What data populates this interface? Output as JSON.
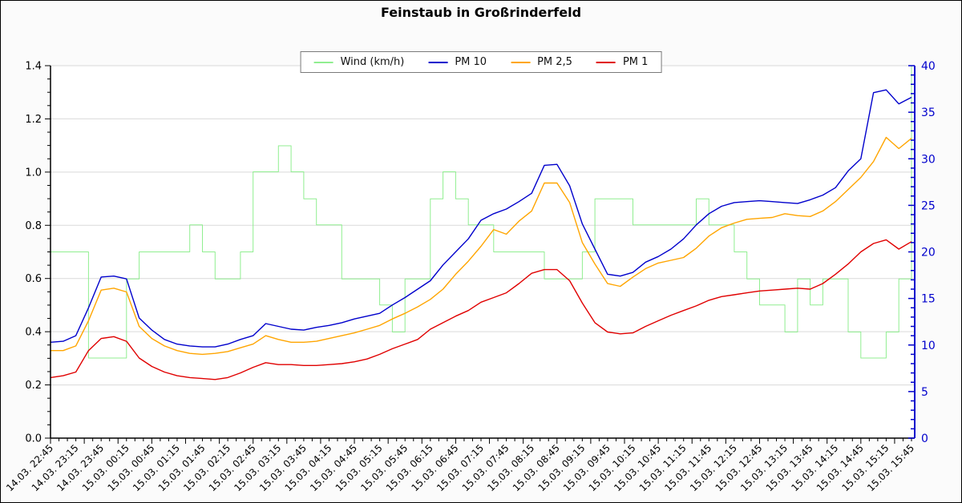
{
  "window": {
    "title": "Feinstaub in Großrinderfeld"
  },
  "chart_data": {
    "type": "line",
    "title": "Feinstaub in Großrinderfeld",
    "x_start_label": "14.03. 22:45",
    "x_end_label": "15.03. 15:45",
    "sample_interval_minutes": 15,
    "x_tick_labels": [
      "14.03. 22:45",
      "14.03. 23:15",
      "14.03. 23:45",
      "15.03. 00:15",
      "15.03. 00:45",
      "15.03. 01:15",
      "15.03. 01:45",
      "15.03. 02:15",
      "15.03. 02:45",
      "15.03. 03:15",
      "15.03. 03:45",
      "15.03. 04:15",
      "15.03. 04:45",
      "15.03. 05:15",
      "15.03. 05:45",
      "15.03. 06:15",
      "15.03. 06:45",
      "15.03. 07:15",
      "15.03. 07:45",
      "15.03. 08:15",
      "15.03. 08:45",
      "15.03. 09:15",
      "15.03. 09:45",
      "15.03. 10:15",
      "15.03. 10:45",
      "15.03. 11:15",
      "15.03. 11:45",
      "15.03. 12:15",
      "15.03. 12:45",
      "15.03. 13:15",
      "15.03. 13:45",
      "15.03. 14:15",
      "15.03. 14:45",
      "15.03. 15:15",
      "15.03. 15:45"
    ],
    "left_axis": {
      "min": 0.0,
      "max": 1.4,
      "tick_step": 0.2,
      "minor_step": 0.05,
      "labels": [
        "0.0",
        "0.2",
        "0.4",
        "0.6",
        "0.8",
        "1.0",
        "1.2",
        "1.4"
      ],
      "color": "#000000"
    },
    "right_axis": {
      "min": 0,
      "max": 40,
      "tick_step": 5,
      "minor_step": 1,
      "labels": [
        "0",
        "5",
        "10",
        "15",
        "20",
        "25",
        "30",
        "35",
        "40"
      ],
      "color": "#0000cc"
    },
    "grid": "horizontal-only",
    "legend_position": "top-center",
    "layout": {
      "background": "#fbfbfb",
      "plot_background": "#ffffff",
      "grid_color": "#d9d9d9",
      "axis_color": "#000000"
    },
    "series": [
      {
        "name": "Wind (km/h)",
        "color": "#90ee90",
        "style": "step",
        "axis": "right",
        "width": 1,
        "values": [
          20,
          20,
          20,
          8.6,
          8.6,
          8.6,
          17.1,
          20,
          20,
          20,
          20,
          22.9,
          20,
          17.1,
          17.1,
          20,
          28.6,
          28.6,
          31.4,
          28.6,
          25.7,
          22.9,
          22.9,
          17.1,
          17.1,
          17.1,
          14.3,
          11.4,
          17.1,
          17.1,
          25.7,
          28.6,
          25.7,
          22.9,
          22.9,
          20,
          20,
          20,
          20,
          17.1,
          17.1,
          17.1,
          20,
          25.7,
          25.7,
          25.7,
          22.9,
          22.9,
          22.9,
          22.9,
          22.9,
          25.7,
          22.9,
          22.9,
          20,
          17.1,
          14.3,
          14.3,
          11.4,
          17.1,
          14.3,
          17.1,
          17.1,
          11.4,
          8.6,
          8.6,
          11.4,
          17.1,
          40
        ]
      },
      {
        "name": "PM 10",
        "color": "#0000cc",
        "style": "line",
        "axis": "right",
        "width": 1.4,
        "values": [
          10.3,
          10.4,
          11.0,
          14.0,
          17.3,
          17.4,
          17.1,
          12.9,
          11.6,
          10.6,
          10.1,
          9.9,
          9.8,
          9.8,
          10.1,
          10.6,
          11.0,
          12.3,
          12.0,
          11.7,
          11.6,
          11.9,
          12.1,
          12.4,
          12.8,
          13.1,
          13.4,
          14.3,
          15.1,
          16.0,
          16.9,
          18.6,
          20.0,
          21.4,
          23.4,
          24.1,
          24.6,
          25.4,
          26.3,
          29.3,
          29.4,
          27.1,
          23.0,
          20.3,
          17.6,
          17.4,
          17.8,
          18.9,
          19.5,
          20.3,
          21.4,
          22.9,
          24.1,
          24.9,
          25.3,
          25.4,
          25.5,
          25.4,
          25.3,
          25.2,
          25.6,
          26.1,
          26.9,
          28.7,
          30.0,
          37.1,
          37.4,
          35.9,
          36.6
        ]
      },
      {
        "name": "PM 2,5",
        "color": "#ffa500",
        "style": "line",
        "axis": "right",
        "width": 1.4,
        "values": [
          9.4,
          9.4,
          9.9,
          12.6,
          15.9,
          16.1,
          15.7,
          12.0,
          10.7,
          9.9,
          9.4,
          9.1,
          9.0,
          9.1,
          9.3,
          9.7,
          10.1,
          11.0,
          10.6,
          10.3,
          10.3,
          10.4,
          10.7,
          11.0,
          11.3,
          11.7,
          12.1,
          12.8,
          13.4,
          14.1,
          14.9,
          16.0,
          17.6,
          19.0,
          20.6,
          22.4,
          21.9,
          23.3,
          24.4,
          27.4,
          27.4,
          25.3,
          21.0,
          18.7,
          16.6,
          16.3,
          17.3,
          18.2,
          18.8,
          19.1,
          19.4,
          20.4,
          21.7,
          22.6,
          23.1,
          23.5,
          23.6,
          23.7,
          24.1,
          23.9,
          23.8,
          24.4,
          25.4,
          26.7,
          28.0,
          29.7,
          32.3,
          31.1,
          32.2
        ]
      },
      {
        "name": "PM 1",
        "color": "#e00000",
        "style": "line",
        "axis": "right",
        "width": 1.4,
        "values": [
          6.5,
          6.7,
          7.1,
          9.4,
          10.7,
          10.9,
          10.4,
          8.6,
          7.7,
          7.1,
          6.7,
          6.5,
          6.4,
          6.3,
          6.5,
          7.0,
          7.6,
          8.1,
          7.9,
          7.9,
          7.8,
          7.8,
          7.9,
          8.0,
          8.2,
          8.5,
          9.0,
          9.6,
          10.1,
          10.6,
          11.7,
          12.4,
          13.1,
          13.7,
          14.6,
          15.1,
          15.6,
          16.6,
          17.7,
          18.1,
          18.1,
          16.9,
          14.5,
          12.4,
          11.4,
          11.2,
          11.3,
          12.0,
          12.6,
          13.2,
          13.7,
          14.2,
          14.8,
          15.2,
          15.4,
          15.6,
          15.8,
          15.9,
          16.0,
          16.1,
          16.0,
          16.6,
          17.6,
          18.7,
          20.0,
          20.9,
          21.3,
          20.3,
          21.1
        ]
      }
    ]
  }
}
